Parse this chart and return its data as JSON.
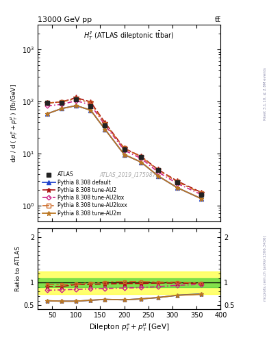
{
  "title_top": "13000 GeV pp",
  "title_top_right": "tt̅",
  "inner_title": "$H_T^{ll}$ (ATLAS dileptonic t̅tbar)",
  "xlabel": "Dilepton $p_T^e + p_T^{\\mu}$ [GeV]",
  "ylabel_main": "d$\\sigma$ / d ( $p_T^e + p_T^{\\mu}$ ) [fb/GeV]",
  "ylabel_ratio": "Ratio to ATLAS",
  "watermark": "ATLAS_2019_I1759875",
  "right_label_top": "Rivet 3.1.10, ≥ 2.8M events",
  "right_label_bottom": "mcplots.cern.ch [arXiv:1306.3436]",
  "x": [
    40,
    70,
    100,
    130,
    160,
    200,
    235,
    270,
    310,
    360
  ],
  "atlas_y": [
    95,
    95,
    110,
    80,
    35,
    12,
    8.5,
    4.8,
    2.8,
    1.6
  ],
  "atlas_yerr": [
    6,
    5,
    6,
    4,
    2,
    1,
    0.5,
    0.3,
    0.2,
    0.15
  ],
  "pythia_default_y": [
    58,
    73,
    83,
    68,
    29,
    9.5,
    6.8,
    3.7,
    2.2,
    1.35
  ],
  "pythia_AU2_y": [
    93,
    98,
    118,
    98,
    39,
    12.5,
    8.8,
    4.9,
    2.95,
    1.78
  ],
  "pythia_AU2lox_y": [
    82,
    88,
    103,
    86,
    35,
    11.5,
    8.0,
    4.4,
    2.65,
    1.62
  ],
  "pythia_AU2loxx_y": [
    93,
    98,
    113,
    94,
    37,
    12.5,
    8.6,
    4.8,
    2.85,
    1.72
  ],
  "pythia_AU2m_y": [
    58,
    73,
    83,
    68,
    29,
    9.5,
    6.8,
    3.7,
    2.2,
    1.35
  ],
  "ratio_default": [
    0.6,
    0.59,
    0.59,
    0.61,
    0.63,
    0.62,
    0.64,
    0.67,
    0.72,
    0.75
  ],
  "ratio_AU2": [
    0.91,
    0.91,
    0.96,
    0.96,
    0.97,
    0.98,
    0.98,
    0.99,
    0.99,
    0.98
  ],
  "ratio_AU2lox": [
    0.83,
    0.84,
    0.85,
    0.86,
    0.87,
    0.88,
    0.89,
    0.91,
    0.94,
    0.96
  ],
  "ratio_AU2loxx": [
    0.96,
    0.95,
    0.97,
    0.99,
    1.01,
    1.02,
    1.02,
    1.01,
    1.01,
    0.99
  ],
  "ratio_AU2m": [
    0.6,
    0.59,
    0.59,
    0.61,
    0.63,
    0.62,
    0.64,
    0.67,
    0.72,
    0.74
  ],
  "band_green_low": 0.9,
  "band_green_high": 1.1,
  "band_yellow_low": 0.75,
  "band_yellow_high": 1.25,
  "color_atlas": "#222222",
  "color_default": "#2244cc",
  "color_AU2": "#aa1111",
  "color_AU2lox": "#cc2288",
  "color_AU2loxx": "#cc6622",
  "color_AU2m": "#bb7722"
}
